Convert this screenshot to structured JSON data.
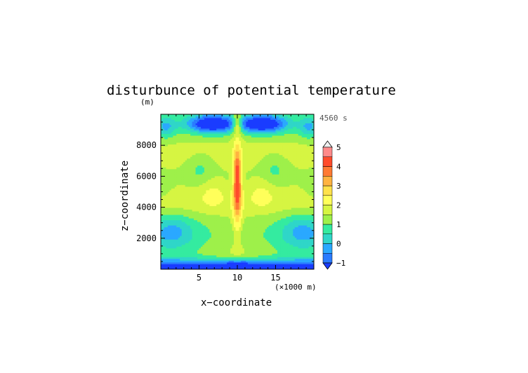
{
  "chart_data": {
    "type": "heatmap",
    "title": "disturbunce of potential temperature",
    "xlabel": "x−coordinate",
    "ylabel": "z−coordinate",
    "y_unit": "(m)",
    "x_unit": "(×1000 m)",
    "time_label": "4560 s",
    "x_range": [
      0,
      20
    ],
    "y_range": [
      0,
      10000
    ],
    "x_ticks": [
      "5",
      "10",
      "15"
    ],
    "y_ticks": [
      "2000",
      "4000",
      "6000",
      "8000"
    ],
    "colorbar": {
      "labels": [
        "−1",
        "0",
        "1",
        "2",
        "3",
        "4",
        "5"
      ],
      "levels": [
        -1,
        -0.5,
        0,
        0.5,
        1,
        1.5,
        2,
        2.5,
        3,
        3.5,
        4,
        4.5,
        5
      ],
      "colors": [
        "#1a3cff",
        "#2a7bff",
        "#2aa8ff",
        "#2fd6c8",
        "#34eba0",
        "#9ef04a",
        "#d6f542",
        "#ffff5a",
        "#ffe14a",
        "#ffb340",
        "#ff7a33",
        "#ff4b2b",
        "#ff8a8a",
        "#ffb4b4"
      ]
    },
    "field_description": "symmetric about x=10; warm central column (max ~3.5 near z=5000-7000 m); cold layers near top (~9000-9700 m) and bottom (<500 m); moderate warm band (~2-3) around z=4000-5000 m"
  }
}
